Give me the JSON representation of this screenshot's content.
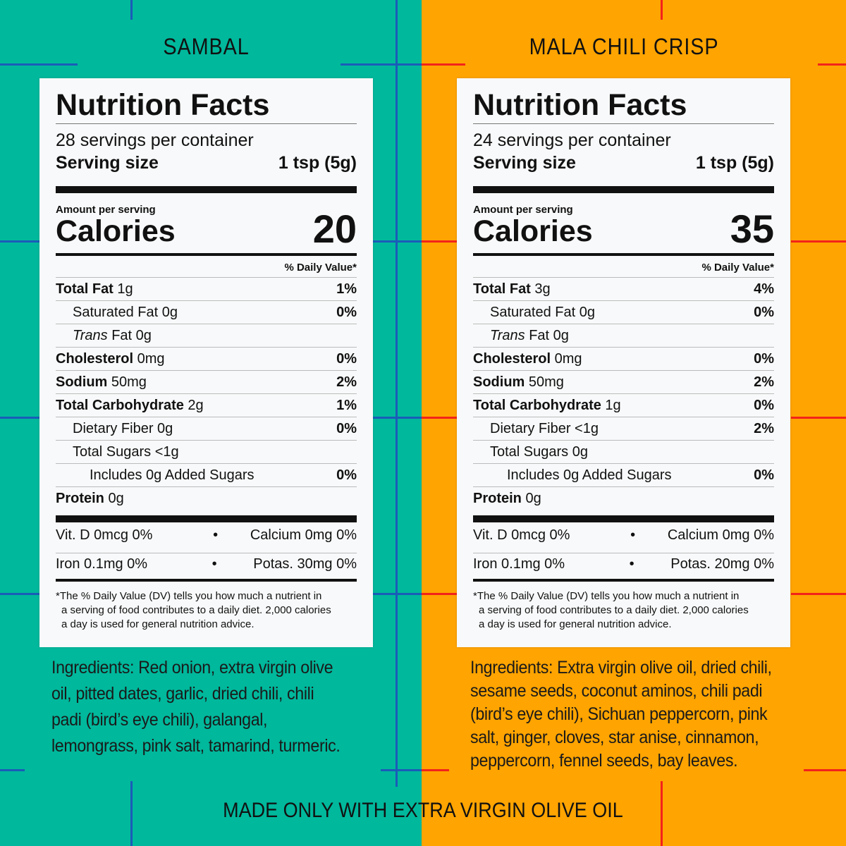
{
  "colors": {
    "left_bg": "#00b89c",
    "right_bg": "#ffa400",
    "left_lines": "#1a5cb8",
    "right_lines": "#f2231b"
  },
  "products": [
    {
      "name": "SAMBAL",
      "label": {
        "title": "Nutrition Facts",
        "servings": "28 servings per container",
        "serving_size_label": "Serving size",
        "serving_size": "1 tsp (5g)",
        "amount_label": "Amount per serving",
        "calories_label": "Calories",
        "calories": "20",
        "dv_header": "% Daily Value*",
        "rows": [
          {
            "bold": "Total Fat",
            "rest": " 1g",
            "dv": "1%",
            "indent": 0
          },
          {
            "bold": "",
            "rest": "Saturated Fat 0g",
            "dv": "0%",
            "indent": 1
          },
          {
            "bold": "",
            "italic": "Trans",
            "rest": " Fat 0g",
            "dv": "",
            "indent": 1
          },
          {
            "bold": "Cholesterol",
            "rest": " 0mg",
            "dv": "0%",
            "indent": 0
          },
          {
            "bold": "Sodium",
            "rest": " 50mg",
            "dv": "2%",
            "indent": 0
          },
          {
            "bold": "Total Carbohydrate",
            "rest": " 2g",
            "dv": "1%",
            "indent": 0
          },
          {
            "bold": "",
            "rest": "Dietary Fiber 0g",
            "dv": "0%",
            "indent": 1
          },
          {
            "bold": "",
            "rest": "Total Sugars <1g",
            "dv": "",
            "indent": 1
          },
          {
            "bold": "",
            "rest": "Includes 0g Added Sugars",
            "dv": "0%",
            "indent": 2
          },
          {
            "bold": "Protein",
            "rest": " 0g",
            "dv": "",
            "indent": 0
          }
        ],
        "vitamins": [
          [
            "Vit. D 0mcg 0%",
            "Calcium 0mg 0%"
          ],
          [
            "Iron 0.1mg 0%",
            "Potas. 30mg 0%"
          ]
        ],
        "footnote": [
          "*The % Daily Value (DV) tells you how much a nutrient in",
          "a serving of food contributes to a daily diet. 2,000 calories",
          "a day is used for general nutrition advice."
        ]
      },
      "ingredients": [
        "Ingredients: Red onion, extra virgin olive",
        "oil, pitted dates, garlic, dried chili, chili",
        "padi (bird’s eye chili), galangal,",
        "lemongrass, pink salt, tamarind, turmeric."
      ]
    },
    {
      "name": "MALA CHILI CRISP",
      "label": {
        "title": "Nutrition Facts",
        "servings": "24 servings per container",
        "serving_size_label": "Serving size",
        "serving_size": "1 tsp (5g)",
        "amount_label": "Amount per serving",
        "calories_label": "Calories",
        "calories": "35",
        "dv_header": "% Daily Value*",
        "rows": [
          {
            "bold": "Total Fat",
            "rest": " 3g",
            "dv": "4%",
            "indent": 0
          },
          {
            "bold": "",
            "rest": "Saturated Fat 0g",
            "dv": "0%",
            "indent": 1
          },
          {
            "bold": "",
            "italic": "Trans",
            "rest": " Fat 0g",
            "dv": "",
            "indent": 1
          },
          {
            "bold": "Cholesterol",
            "rest": " 0mg",
            "dv": "0%",
            "indent": 0
          },
          {
            "bold": "Sodium",
            "rest": " 50mg",
            "dv": "2%",
            "indent": 0
          },
          {
            "bold": "Total Carbohydrate",
            "rest": " 1g",
            "dv": "0%",
            "indent": 0
          },
          {
            "bold": "",
            "rest": "Dietary Fiber <1g",
            "dv": "2%",
            "indent": 1
          },
          {
            "bold": "",
            "rest": "Total Sugars 0g",
            "dv": "",
            "indent": 1
          },
          {
            "bold": "",
            "rest": "Includes 0g Added Sugars",
            "dv": "0%",
            "indent": 2
          },
          {
            "bold": "Protein",
            "rest": " 0g",
            "dv": "",
            "indent": 0
          }
        ],
        "vitamins": [
          [
            "Vit. D 0mcg 0%",
            "Calcium 0mg 0%"
          ],
          [
            "Iron 0.1mg 0%",
            "Potas. 20mg 0%"
          ]
        ],
        "footnote": [
          "*The % Daily Value (DV) tells you how much a nutrient in",
          "a serving of food contributes to a daily diet. 2,000 calories",
          "a day is used for general nutrition advice."
        ]
      },
      "ingredients": [
        "Ingredients: Extra virgin olive oil, dried chili,",
        "sesame seeds, coconut aminos, chili padi",
        "(bird’s eye chili), Sichuan peppercorn, pink",
        "salt, ginger, cloves, star anise, cinnamon,",
        "peppercorn, fennel seeds, bay leaves."
      ]
    }
  ],
  "tagline": "MADE ONLY WITH EXTRA VIRGIN OLIVE OIL"
}
